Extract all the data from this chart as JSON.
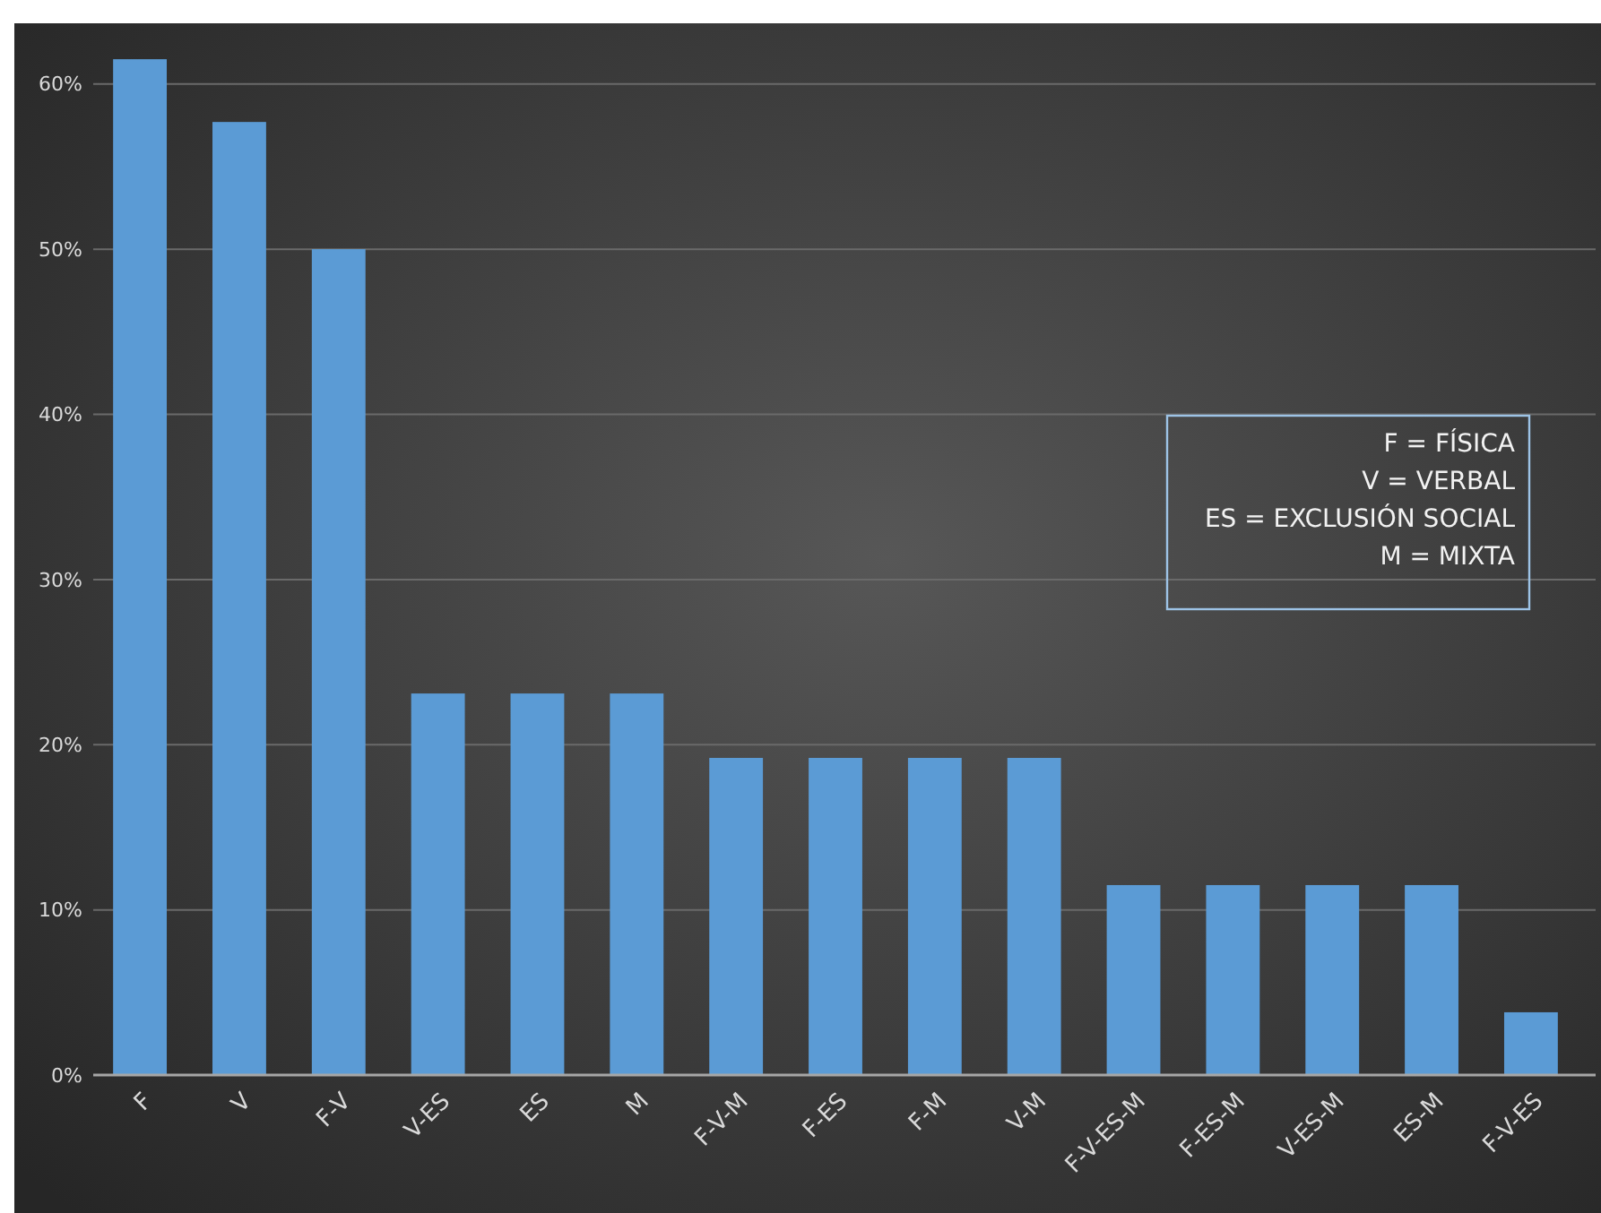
{
  "chart_data": {
    "type": "bar",
    "categories": [
      "F",
      "V",
      "F-V",
      "V-ES",
      "ES",
      "M",
      "F-V-M",
      "F-ES",
      "F-M",
      "V-M",
      "F-V-ES-M",
      "F-ES-M",
      "V-ES-M",
      "ES-M",
      "F-V-ES"
    ],
    "values": [
      61.5,
      57.7,
      50,
      23.1,
      23.1,
      23.1,
      19.2,
      19.2,
      19.2,
      19.2,
      11.5,
      11.5,
      11.5,
      11.5,
      3.8
    ],
    "color": "#5b9bd5",
    "ylim": [
      0,
      64
    ],
    "yticks": [
      {
        "value": 0,
        "label": "0%"
      },
      {
        "value": 10,
        "label": "10%"
      },
      {
        "value": 20,
        "label": "20%"
      },
      {
        "value": 30,
        "label": "30%"
      },
      {
        "value": 40,
        "label": "40%"
      },
      {
        "value": 50,
        "label": "50%"
      },
      {
        "value": 60,
        "label": "60%"
      }
    ],
    "grid": "y",
    "annotations": [
      "F = FÍSICA",
      "V = VERBAL",
      "ES = EXCLUSIÓN SOCIAL",
      "M = MIXTA"
    ]
  }
}
